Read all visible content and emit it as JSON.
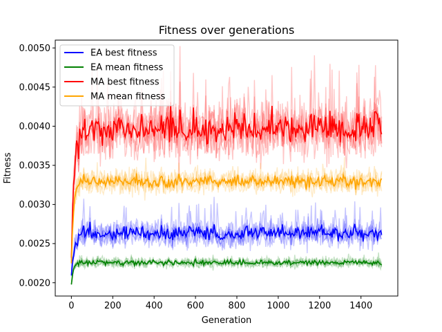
{
  "chart_data": {
    "type": "line",
    "title": "Fitness over generations",
    "xlabel": "Generation",
    "ylabel": "Fitness",
    "xlim": [
      -78,
      1578
    ],
    "ylim": [
      0.00183,
      0.0051
    ],
    "xticks": [
      0,
      200,
      400,
      600,
      800,
      1000,
      1200,
      1400
    ],
    "xtick_labels": [
      "0",
      "200",
      "400",
      "600",
      "800",
      "1000",
      "1200",
      "1400"
    ],
    "yticks": [
      0.002,
      0.0025,
      0.003,
      0.0035,
      0.004,
      0.0045,
      0.005
    ],
    "ytick_labels": [
      "0.0020",
      "0.0025",
      "0.0030",
      "0.0035",
      "0.0040",
      "0.0045",
      "0.0050"
    ],
    "grid": false,
    "legend_position": "top-left",
    "generations": 1500,
    "series": [
      {
        "name": "EA best fitness",
        "color": "#0000ff",
        "start": 0.0021,
        "plateau": 0.00262,
        "rise_generations": 40,
        "band_low": 0.00235,
        "band_high": 0.00295
      },
      {
        "name": "EA mean fitness",
        "color": "#008000",
        "start": 0.00198,
        "plateau": 0.002255,
        "rise_generations": 25,
        "band_low": 0.00215,
        "band_high": 0.00238
      },
      {
        "name": "MA best fitness",
        "color": "#ff0000",
        "start": 0.00235,
        "plateau": 0.00395,
        "rise_generations": 40,
        "band_low": 0.00355,
        "band_high": 0.0049
      },
      {
        "name": "MA mean fitness",
        "color": "#ffa500",
        "start": 0.00225,
        "plateau": 0.00329,
        "rise_generations": 30,
        "band_low": 0.003,
        "band_high": 0.00355
      }
    ]
  }
}
